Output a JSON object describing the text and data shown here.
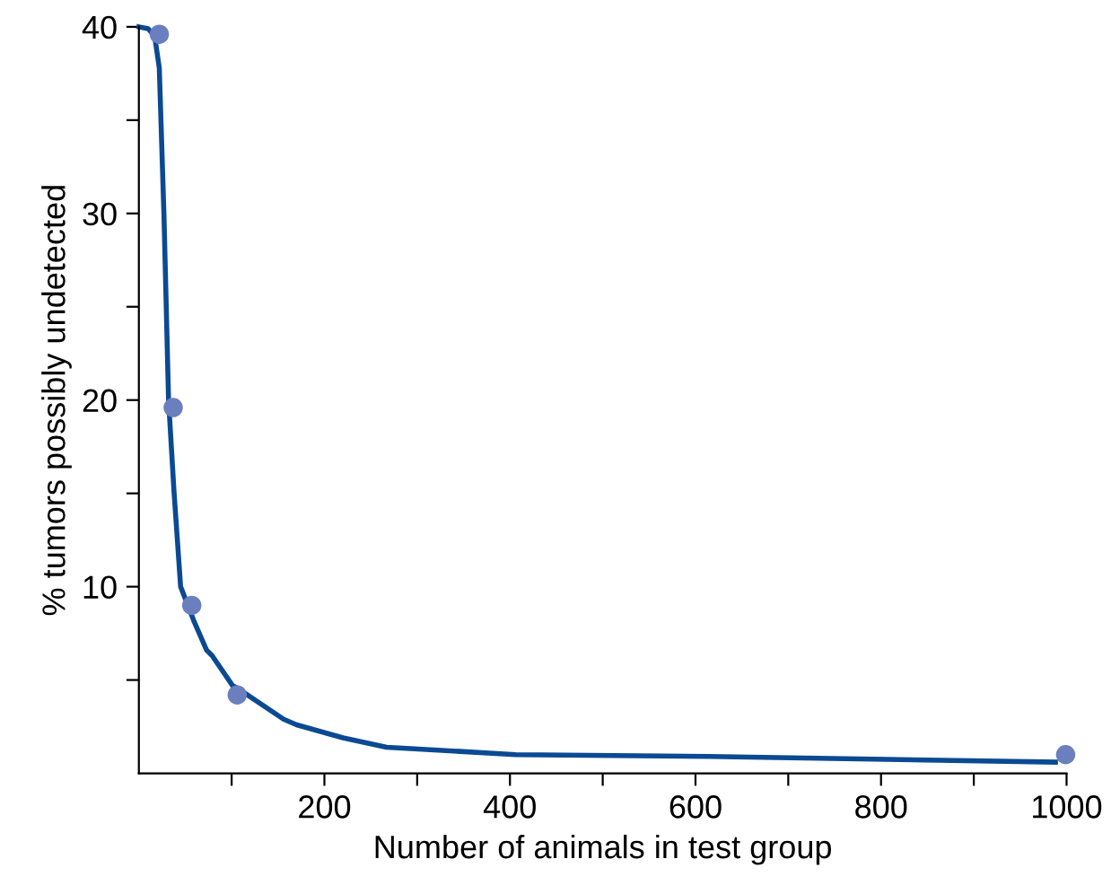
{
  "chart_data": {
    "type": "line",
    "xlabel": "Number of animals in test group",
    "ylabel": "% tumors possibly undetected",
    "xlim": [
      0,
      1000
    ],
    "ylim": [
      0,
      40
    ],
    "xticks": [
      {
        "value": 100,
        "label": null
      },
      200,
      {
        "value": 300,
        "label": null
      },
      400,
      {
        "value": 500,
        "label": null
      },
      600,
      {
        "value": 700,
        "label": null
      },
      800,
      {
        "value": 900,
        "label": null
      },
      1000
    ],
    "yticks": [
      {
        "value": 5,
        "label": null
      },
      10,
      {
        "value": 15,
        "label": null
      },
      20,
      {
        "value": 25,
        "label": null
      },
      30,
      {
        "value": 35,
        "label": null
      },
      40
    ],
    "grid": false,
    "series": [
      {
        "color": "#0b4a93",
        "marker": "none",
        "line_style": "solid",
        "x": [
          0,
          10,
          17,
          22,
          27,
          32,
          38,
          45,
          59,
          73,
          79,
          101,
          105,
          156,
          170,
          220,
          267,
          406,
          614,
          988
        ],
        "values": [
          40,
          39.9,
          39.5,
          37.8,
          30,
          20,
          15,
          10,
          8.2,
          6.6,
          6.3,
          4.7,
          4.6,
          2.9,
          2.6,
          1.9,
          1.4,
          1.0,
          0.9,
          0.6
        ]
      },
      {
        "type": "scatter",
        "color": "#6b7fbf",
        "marker": "circle",
        "x": [
          22,
          37,
          57,
          106,
          999
        ],
        "values": [
          39.6,
          19.6,
          9.0,
          4.2,
          1.0
        ]
      }
    ]
  }
}
